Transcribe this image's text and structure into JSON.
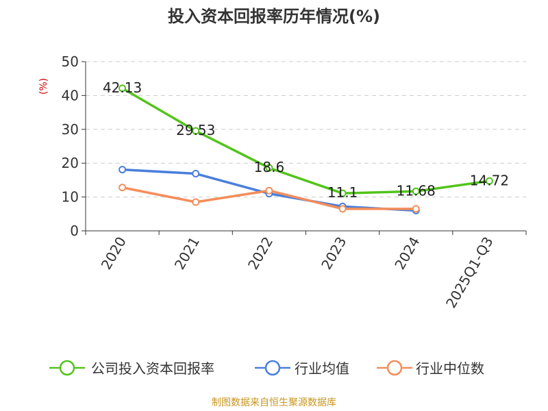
{
  "chart_data": {
    "type": "line",
    "title": "投入资本回报率历年情况(%)",
    "ylabel": "(%)",
    "ylim": [
      0,
      50
    ],
    "yticks": [
      0,
      10,
      20,
      30,
      40,
      50
    ],
    "grid": true,
    "legend_position": "bottom",
    "categories": [
      "2020",
      "2021",
      "2022",
      "2023",
      "2024",
      "2025Q1-Q3"
    ],
    "series": [
      {
        "name": "公司投入资本回报率",
        "color": "#52c41a",
        "values": [
          42.13,
          29.53,
          18.6,
          11.1,
          11.68,
          14.72
        ],
        "labels": [
          "42.13",
          "29.53",
          "18.6",
          "11.1",
          "11.68",
          "14.72"
        ]
      },
      {
        "name": "行业均值",
        "color": "#4a7fdc",
        "values": [
          18.1,
          16.9,
          11.0,
          7.2,
          6.0,
          null
        ]
      },
      {
        "name": "行业中位数",
        "color": "#f58d5a",
        "values": [
          12.8,
          8.5,
          11.9,
          6.5,
          6.5,
          null
        ]
      }
    ]
  },
  "source": "制图数据来自恒生聚源数据库"
}
